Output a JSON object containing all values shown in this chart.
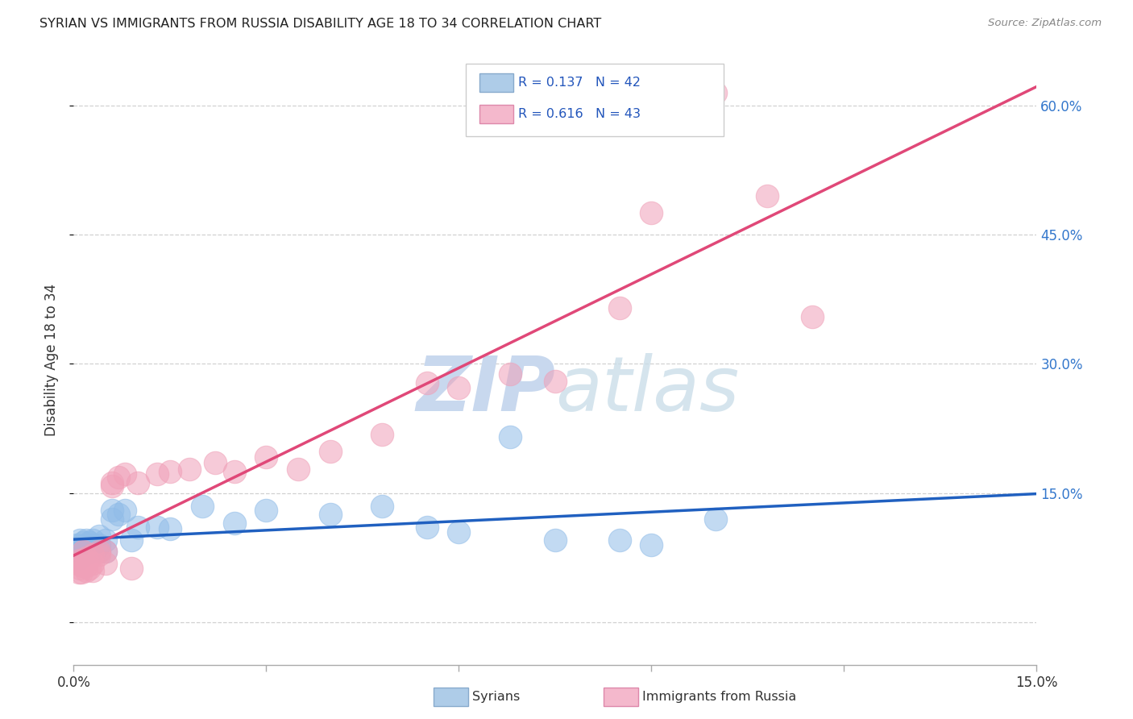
{
  "title": "SYRIAN VS IMMIGRANTS FROM RUSSIA DISABILITY AGE 18 TO 34 CORRELATION CHART",
  "source": "Source: ZipAtlas.com",
  "ylabel": "Disability Age 18 to 34",
  "xmin": 0.0,
  "xmax": 0.15,
  "ymin": -0.05,
  "ymax": 0.66,
  "blue_scatter_color": "#90bce8",
  "pink_scatter_color": "#f0a0b8",
  "blue_line_color": "#2060c0",
  "pink_line_color": "#e04878",
  "blue_legend_color": "#aecce8",
  "pink_legend_color": "#f4b8cc",
  "watermark_color": "#ccdcee",
  "grid_color": "#cccccc",
  "background": "#ffffff",
  "syrians_x": [
    0.0005,
    0.0008,
    0.001,
    0.001,
    0.001,
    0.0012,
    0.0015,
    0.0015,
    0.0018,
    0.002,
    0.002,
    0.002,
    0.0025,
    0.003,
    0.003,
    0.003,
    0.0035,
    0.004,
    0.004,
    0.004,
    0.005,
    0.005,
    0.006,
    0.006,
    0.007,
    0.008,
    0.009,
    0.01,
    0.013,
    0.015,
    0.02,
    0.025,
    0.03,
    0.04,
    0.048,
    0.055,
    0.06,
    0.068,
    0.075,
    0.085,
    0.09,
    0.1
  ],
  "syrians_y": [
    0.09,
    0.085,
    0.095,
    0.075,
    0.082,
    0.088,
    0.092,
    0.078,
    0.085,
    0.095,
    0.08,
    0.088,
    0.092,
    0.095,
    0.082,
    0.09,
    0.085,
    0.1,
    0.09,
    0.082,
    0.095,
    0.082,
    0.13,
    0.12,
    0.125,
    0.13,
    0.095,
    0.11,
    0.11,
    0.108,
    0.135,
    0.115,
    0.13,
    0.125,
    0.135,
    0.11,
    0.105,
    0.215,
    0.095,
    0.095,
    0.09,
    0.12
  ],
  "russia_x": [
    0.0005,
    0.0008,
    0.001,
    0.001,
    0.0012,
    0.0015,
    0.0015,
    0.0018,
    0.002,
    0.002,
    0.002,
    0.0025,
    0.003,
    0.003,
    0.003,
    0.004,
    0.004,
    0.005,
    0.005,
    0.006,
    0.006,
    0.007,
    0.008,
    0.009,
    0.01,
    0.013,
    0.015,
    0.018,
    0.022,
    0.025,
    0.03,
    0.035,
    0.04,
    0.048,
    0.055,
    0.06,
    0.068,
    0.075,
    0.085,
    0.09,
    0.1,
    0.108,
    0.115
  ],
  "russia_y": [
    0.068,
    0.058,
    0.072,
    0.062,
    0.058,
    0.082,
    0.065,
    0.072,
    0.06,
    0.075,
    0.065,
    0.062,
    0.06,
    0.078,
    0.068,
    0.082,
    0.078,
    0.068,
    0.082,
    0.162,
    0.158,
    0.168,
    0.172,
    0.062,
    0.162,
    0.172,
    0.175,
    0.178,
    0.185,
    0.175,
    0.192,
    0.178,
    0.198,
    0.218,
    0.278,
    0.272,
    0.288,
    0.28,
    0.365,
    0.475,
    0.615,
    0.495,
    0.355
  ],
  "ytick_values": [
    0.0,
    0.15,
    0.3,
    0.45,
    0.6
  ],
  "ytick_labels": [
    "",
    "15.0%",
    "30.0%",
    "45.0%",
    "60.0%"
  ],
  "xtick_positions": [
    0.0,
    0.03,
    0.06,
    0.09,
    0.12,
    0.15
  ]
}
